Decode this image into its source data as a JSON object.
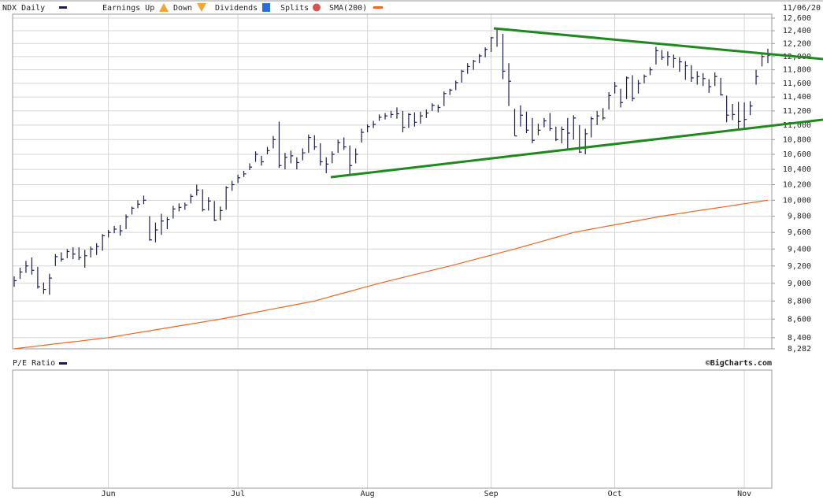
{
  "chart_data": {
    "type": "hlc",
    "date": "11/06/20",
    "log": true,
    "grid": true,
    "copyright": "©BigCharts.com",
    "legend_items": [
      "Earnings Up",
      "Down",
      "Dividends",
      "Splits"
    ],
    "lower_panel": {
      "name": "P/E Ratio"
    },
    "categories": [
      null,
      null,
      null,
      null,
      null,
      null,
      null,
      null,
      null,
      null,
      null,
      null,
      null,
      null,
      null,
      null,
      "Jun",
      null,
      null,
      null,
      null,
      null,
      null,
      null,
      null,
      null,
      null,
      null,
      null,
      null,
      null,
      null,
      null,
      null,
      null,
      null,
      null,
      null,
      "Jul",
      null,
      null,
      null,
      null,
      null,
      null,
      null,
      null,
      null,
      null,
      null,
      null,
      null,
      null,
      null,
      null,
      null,
      null,
      null,
      null,
      null,
      "Aug",
      null,
      null,
      null,
      null,
      null,
      null,
      null,
      null,
      null,
      null,
      null,
      null,
      null,
      null,
      null,
      null,
      null,
      null,
      null,
      null,
      "Sep",
      null,
      null,
      null,
      null,
      null,
      null,
      null,
      null,
      null,
      null,
      null,
      null,
      null,
      null,
      null,
      null,
      null,
      null,
      null,
      null,
      "Oct",
      null,
      null,
      null,
      null,
      null,
      null,
      null,
      null,
      null,
      null,
      null,
      null,
      null,
      null,
      null,
      null,
      null,
      null,
      null,
      null,
      null,
      "Nov",
      null,
      null,
      null,
      null
    ],
    "series": [
      {
        "name": "NDX Daily",
        "color": "#1c1c50",
        "high": [
          9080,
          9180,
          9260,
          9300,
          9190,
          9010,
          9110,
          9340,
          9360,
          9400,
          9420,
          9420,
          9390,
          9430,
          9470,
          9580,
          9630,
          9680,
          9690,
          9820,
          9920,
          10000,
          10060,
          9800,
          9720,
          9830,
          9790,
          9930,
          9960,
          9970,
          10080,
          10200,
          10140,
          10040,
          9990,
          9920,
          10180,
          10250,
          10330,
          10380,
          10480,
          10640,
          10580,
          10700,
          10850,
          11050,
          10620,
          10650,
          10560,
          10680,
          10870,
          10860,
          10750,
          10560,
          10640,
          10800,
          10830,
          10720,
          10680,
          10950,
          11010,
          11060,
          11150,
          11170,
          11200,
          11250,
          11200,
          11170,
          11180,
          11190,
          11220,
          11310,
          11290,
          11480,
          11520,
          11640,
          11800,
          11900,
          11950,
          12040,
          12140,
          12300,
          12440,
          12350,
          11900,
          11230,
          11280,
          11190,
          11100,
          11020,
          11100,
          11170,
          10980,
          10980,
          11100,
          11140,
          11000,
          10950,
          11120,
          11200,
          11240,
          11470,
          11620,
          11520,
          11700,
          11720,
          11650,
          11730,
          11840,
          12150,
          12100,
          12080,
          12030,
          11990,
          11930,
          11870,
          11780,
          11750,
          11660,
          11760,
          11680,
          11420,
          11300,
          11330,
          11320,
          11340,
          11800,
          12040,
          12120
        ],
        "low": [
          8960,
          9050,
          9120,
          9100,
          8940,
          8880,
          8870,
          9200,
          9250,
          9290,
          9280,
          9270,
          9180,
          9300,
          9330,
          9380,
          9540,
          9590,
          9560,
          9640,
          9820,
          9900,
          9950,
          9500,
          9480,
          9570,
          9640,
          9770,
          9860,
          9880,
          9960,
          10060,
          9860,
          9870,
          9740,
          9750,
          9880,
          10120,
          10220,
          10300,
          10390,
          10500,
          10450,
          10600,
          10680,
          10420,
          10400,
          10480,
          10400,
          10520,
          10620,
          10660,
          10450,
          10350,
          10480,
          10620,
          10660,
          10330,
          10480,
          10760,
          10900,
          10960,
          11060,
          11080,
          11100,
          11090,
          10900,
          10960,
          10980,
          11020,
          11100,
          11200,
          11180,
          11270,
          11430,
          11500,
          11610,
          11740,
          11800,
          11900,
          11990,
          12070,
          12150,
          11660,
          11270,
          10850,
          10980,
          10890,
          10750,
          10860,
          10970,
          10920,
          10780,
          10750,
          10680,
          10800,
          10620,
          10600,
          10830,
          11000,
          11070,
          11220,
          11450,
          11250,
          11370,
          11340,
          11450,
          11600,
          11720,
          11880,
          11950,
          11860,
          11830,
          11770,
          11650,
          11620,
          11580,
          11560,
          11460,
          11560,
          11420,
          11040,
          11070,
          10950,
          10960,
          11140,
          11580,
          11850,
          11900
        ],
        "close": [
          9030,
          9130,
          9200,
          9150,
          8960,
          8930,
          9060,
          9310,
          9280,
          9370,
          9340,
          9300,
          9320,
          9400,
          9430,
          9560,
          9600,
          9640,
          9620,
          9790,
          9900,
          9950,
          10000,
          9510,
          9630,
          9740,
          9760,
          9890,
          9910,
          9940,
          10050,
          10130,
          9880,
          9990,
          9750,
          9870,
          10160,
          10200,
          10290,
          10340,
          10430,
          10600,
          10500,
          10650,
          10800,
          10450,
          10560,
          10580,
          10490,
          10620,
          10830,
          10700,
          10500,
          10470,
          10600,
          10760,
          10700,
          10450,
          10600,
          10900,
          10980,
          11010,
          11110,
          11130,
          11150,
          11160,
          10970,
          11150,
          11040,
          11130,
          11170,
          11280,
          11250,
          11450,
          11500,
          11610,
          11780,
          11850,
          11930,
          12010,
          12110,
          12290,
          12420,
          11780,
          11630,
          10850,
          11140,
          10930,
          10790,
          10930,
          11060,
          10950,
          10800,
          10940,
          10890,
          11100,
          10630,
          10880,
          11090,
          11130,
          11100,
          11420,
          11560,
          11320,
          11680,
          11380,
          11600,
          11700,
          11800,
          12090,
          11990,
          12000,
          11970,
          11920,
          11860,
          11680,
          11700,
          11670,
          11550,
          11700,
          11430,
          11140,
          11150,
          11050,
          11080,
          11270,
          11700,
          12000,
          12020
        ]
      },
      {
        "name": "SMA(200)",
        "color": "#f26522",
        "values": [
          8282,
          8290,
          8297,
          8304,
          8312,
          8319,
          8327,
          8334,
          8341,
          8349,
          8356,
          8363,
          8371,
          8378,
          8386,
          8393,
          8400,
          8411,
          8421,
          8432,
          8442,
          8453,
          8463,
          8474,
          8484,
          8495,
          8505,
          8516,
          8526,
          8537,
          8547,
          8558,
          8568,
          8579,
          8589,
          8600,
          8612,
          8625,
          8637,
          8650,
          8662,
          8675,
          8687,
          8700,
          8712,
          8725,
          8737,
          8750,
          8762,
          8775,
          8787,
          8800,
          8818,
          8836,
          8855,
          8873,
          8891,
          8909,
          8927,
          8945,
          8964,
          8982,
          9000,
          9017,
          9033,
          9050,
          9067,
          9083,
          9100,
          9117,
          9133,
          9150,
          9167,
          9183,
          9200,
          9218,
          9236,
          9255,
          9273,
          9291,
          9309,
          9327,
          9345,
          9364,
          9382,
          9400,
          9420,
          9440,
          9460,
          9480,
          9500,
          9520,
          9540,
          9560,
          9580,
          9600,
          9613,
          9627,
          9640,
          9653,
          9667,
          9680,
          9693,
          9707,
          9720,
          9733,
          9747,
          9760,
          9773,
          9787,
          9800,
          9811,
          9822,
          9833,
          9844,
          9856,
          9867,
          9878,
          9889,
          9900,
          9911,
          9922,
          9933,
          9944,
          9956,
          9967,
          9978,
          9989,
          10000
        ]
      }
    ],
    "ylim": [
      8282,
      12600
    ],
    "yticks": [
      {
        "value": 12600,
        "label": "12,600"
      },
      {
        "value": 12400,
        "label": "12,400"
      },
      {
        "value": 12200,
        "label": "12,200"
      },
      {
        "value": 12000,
        "label": "12,000"
      },
      {
        "value": 11800,
        "label": "11,800"
      },
      {
        "value": 11600,
        "label": "11,600"
      },
      {
        "value": 11400,
        "label": "11,400"
      },
      {
        "value": 11200,
        "label": "11,200"
      },
      {
        "value": 11000,
        "label": "11,000"
      },
      {
        "value": 10800,
        "label": "10,800"
      },
      {
        "value": 10600,
        "label": "10,600"
      },
      {
        "value": 10400,
        "label": "10,400"
      },
      {
        "value": 10200,
        "label": "10,200"
      },
      {
        "value": 10000,
        "label": "10,000"
      },
      {
        "value": 9800,
        "label": "9,800"
      },
      {
        "value": 9600,
        "label": "9,600"
      },
      {
        "value": 9400,
        "label": "9,400"
      },
      {
        "value": 9200,
        "label": "9,200"
      },
      {
        "value": 9000,
        "label": "9,000"
      },
      {
        "value": 8800,
        "label": "8,800"
      },
      {
        "value": 8600,
        "label": "8,600"
      },
      {
        "value": 8400,
        "label": "8,400"
      },
      {
        "value": 8282,
        "label": "8,282"
      }
    ]
  }
}
